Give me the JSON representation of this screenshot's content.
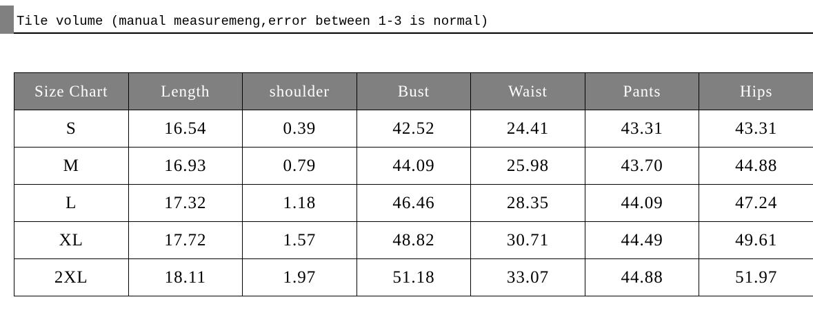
{
  "header": {
    "title": "Tile volume (manual measuremeng,error between 1-3 is normal)"
  },
  "table": {
    "columns": [
      "Size Chart",
      "Length",
      "shoulder",
      "Bust",
      "Waist",
      "Pants",
      "Hips"
    ],
    "rows": [
      [
        "S",
        "16.54",
        "0.39",
        "42.52",
        "24.41",
        "43.31",
        "43.31"
      ],
      [
        "M",
        "16.93",
        "0.79",
        "44.09",
        "25.98",
        "43.70",
        "44.88"
      ],
      [
        "L",
        "17.32",
        "1.18",
        "46.46",
        "28.35",
        "44.09",
        "47.24"
      ],
      [
        "XL",
        "17.72",
        "1.57",
        "48.82",
        "30.71",
        "44.49",
        "49.61"
      ],
      [
        "2XL",
        "18.11",
        "1.97",
        "51.18",
        "33.07",
        "44.88",
        "51.97"
      ]
    ]
  }
}
